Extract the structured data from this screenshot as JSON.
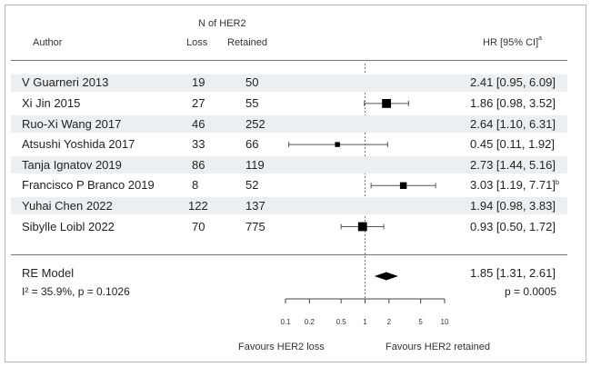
{
  "chart_data": {
    "type": "forest",
    "header": {
      "group_title": "N of HER2",
      "author": "Author",
      "loss": "Loss",
      "retained": "Retained",
      "hr": "HR [95% CI]",
      "hr_sup": "a"
    },
    "studies": [
      {
        "author": "V Guarneri 2013",
        "loss": "19",
        "retained": "50",
        "hr": 2.41,
        "lo": 0.95,
        "hi": 6.09,
        "weight": 0.5,
        "label": "2.41 [0.95, 6.09]",
        "sup": ""
      },
      {
        "author": "Xi Jin 2015",
        "loss": "27",
        "retained": "55",
        "hr": 1.86,
        "lo": 0.98,
        "hi": 3.52,
        "weight": 0.85,
        "label": "1.86 [0.98, 3.52]",
        "sup": ""
      },
      {
        "author": "Ruo-Xi Wang 2017",
        "loss": "46",
        "retained": "252",
        "hr": 2.64,
        "lo": 1.1,
        "hi": 6.31,
        "weight": 0.6,
        "label": "2.64 [1.10, 6.31]",
        "sup": ""
      },
      {
        "author": "Atsushi Yoshida 2017",
        "loss": "33",
        "retained": "66",
        "hr": 0.45,
        "lo": 0.11,
        "hi": 1.92,
        "weight": 0.3,
        "label": "0.45 [0.11, 1.92]",
        "sup": ""
      },
      {
        "author": "Tanja Ignatov 2019",
        "loss": "86",
        "retained": "119",
        "hr": 2.73,
        "lo": 1.44,
        "hi": 5.16,
        "weight": 0.9,
        "label": "2.73 [1.44, 5.16]",
        "sup": ""
      },
      {
        "author": "Francisco P Branco 2019",
        "loss": "8",
        "retained": "52",
        "hr": 3.03,
        "lo": 1.19,
        "hi": 7.71,
        "weight": 0.55,
        "label": "3.03 [1.19, 7.71]",
        "sup": "b"
      },
      {
        "author": "Yuhai Chen 2022",
        "loss": "122",
        "retained": "137",
        "hr": 1.94,
        "lo": 0.98,
        "hi": 3.83,
        "weight": 0.8,
        "label": "1.94 [0.98, 3.83]",
        "sup": ""
      },
      {
        "author": "Sibylle Loibl 2022",
        "loss": "70",
        "retained": "775",
        "hr": 0.93,
        "lo": 0.5,
        "hi": 1.72,
        "weight": 0.85,
        "label": "0.93 [0.50, 1.72]",
        "sup": ""
      }
    ],
    "summary": {
      "model": "RE Model",
      "hr": 1.85,
      "lo": 1.31,
      "hi": 2.61,
      "label": "1.85 [1.31, 2.61]",
      "heterogeneity": "I² = 35.9%, p = 0.1026",
      "p_value": "p = 0.0005"
    },
    "x_scale": "log",
    "xlim": [
      0.1,
      10
    ],
    "ticks": [
      0.1,
      0.2,
      0.5,
      1,
      2,
      5,
      10
    ],
    "tick_labels": [
      "0.1",
      "0.2",
      "0.5",
      "1",
      "2",
      "5",
      "10"
    ],
    "reference_line": 1,
    "favours_left": "Favours HER2 loss",
    "favours_right": "Favours HER2 retained"
  }
}
